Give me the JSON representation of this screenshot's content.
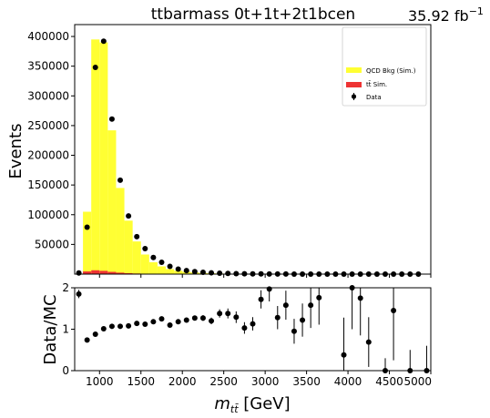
{
  "chart_data": {
    "type": "bar",
    "title": "ttbarmass  0t+1t+2t1bcen",
    "lumi_label": "35.92 fb",
    "lumi_exp": "−1",
    "ylabel_top": "Events",
    "ylabel_bottom": "Data/MC",
    "xlabel_base": "m",
    "xlabel_sub": "tt̄",
    "xlabel_unit": " [GeV]",
    "xlim": [
      700,
      5000
    ],
    "ylim_top": [
      0,
      420000
    ],
    "ylim_bottom": [
      0,
      2
    ],
    "x_ticks": [
      1000,
      1500,
      2000,
      2500,
      3000,
      3500,
      4000,
      4500,
      5000
    ],
    "y_ticks_top": [
      50000,
      100000,
      150000,
      200000,
      250000,
      300000,
      350000,
      400000
    ],
    "y_ticks_bottom": [
      0,
      1,
      2
    ],
    "colors": {
      "qcd": "#ffff33",
      "ttbar": "#ee3333",
      "data": "#000000"
    },
    "legend": {
      "placement": "top-right",
      "entries": [
        {
          "key": "qcd",
          "label": "QCD Bkg (Sim.)"
        },
        {
          "key": "ttbar",
          "label": "tt̄ Sim."
        },
        {
          "key": "data",
          "label": "Data"
        }
      ]
    },
    "bin_edges": [
      700,
      800,
      900,
      1000,
      1100,
      1200,
      1300,
      1400,
      1500,
      1600,
      1700,
      1800,
      1900,
      2000,
      2100,
      2200,
      2300,
      2400,
      2500,
      2600,
      2700,
      2800,
      2900,
      3000,
      3100,
      3200,
      3300,
      3400,
      3500,
      3600,
      3700,
      3800,
      3900,
      4000,
      4100,
      4200,
      4300,
      4400,
      4500,
      4600,
      4700,
      4800,
      4900,
      5000
    ],
    "series": [
      {
        "name": "QCD Bkg (Sim.)",
        "values": [
          0,
          105000,
          395000,
          390000,
          242000,
          145000,
          90000,
          55000,
          33000,
          20000,
          13000,
          8500,
          5800,
          4000,
          2800,
          2000,
          1400,
          1000,
          700,
          500,
          350,
          250,
          180,
          130,
          100,
          70,
          55,
          40,
          30,
          22,
          16,
          12,
          9,
          7,
          5,
          4,
          3,
          2,
          1.5,
          1,
          0.8,
          0.6,
          0.4
        ]
      },
      {
        "name": "tt̄ Sim.",
        "values": [
          0,
          4500,
          6500,
          5500,
          3800,
          2500,
          1600,
          1000,
          600,
          400,
          250,
          150,
          100,
          70,
          50,
          35,
          25,
          18,
          12,
          9,
          6,
          4,
          3,
          2,
          1.5,
          1,
          0.8,
          0.6,
          0.4,
          0.3,
          0.2,
          0.15,
          0.1,
          0.08,
          0.06,
          0.05,
          0.04,
          0.03,
          0.02,
          0.02,
          0.01,
          0.01,
          0.01
        ]
      },
      {
        "name": "Data",
        "x": [
          750,
          850,
          950,
          1050,
          1150,
          1250,
          1350,
          1450,
          1550,
          1650,
          1750,
          1850,
          1950,
          2050,
          2150,
          2250,
          2350,
          2450,
          2550,
          2650,
          2750,
          2850,
          2950,
          3050,
          3150,
          3250,
          3350,
          3450,
          3550,
          3650,
          3750,
          3850,
          3950,
          4050,
          4150,
          4250,
          4350,
          4450,
          4550,
          4650,
          4750,
          4850,
          4950
        ],
        "values": [
          2000,
          79000,
          348000,
          392000,
          261000,
          158000,
          98000,
          63000,
          43000,
          28000,
          20000,
          13000,
          8500,
          6000,
          4300,
          3100,
          2200,
          1600,
          1100,
          800,
          550,
          400,
          300,
          240,
          180,
          120,
          80,
          60,
          45,
          35,
          25,
          18,
          12,
          9,
          7,
          5,
          4,
          3,
          2,
          1,
          1,
          1,
          0
        ]
      },
      {
        "name": "Ratio",
        "x": [
          750,
          850,
          950,
          1050,
          1150,
          1250,
          1350,
          1450,
          1550,
          1650,
          1750,
          1850,
          1950,
          2050,
          2150,
          2250,
          2350,
          2450,
          2550,
          2650,
          2750,
          2850,
          2950,
          3050,
          3150,
          3250,
          3350,
          3450,
          3550,
          3650,
          3950,
          4050,
          4150,
          4250,
          4450,
          4550,
          4750,
          4950
        ],
        "values": [
          1.85,
          0.74,
          0.88,
          1.01,
          1.07,
          1.07,
          1.08,
          1.14,
          1.12,
          1.18,
          1.25,
          1.1,
          1.18,
          1.22,
          1.27,
          1.27,
          1.2,
          1.38,
          1.38,
          1.29,
          1.03,
          1.13,
          1.72,
          1.97,
          1.28,
          1.58,
          0.95,
          1.22,
          1.58,
          1.76,
          0.38,
          2.0,
          1.75,
          0.69,
          0.0,
          1.45,
          0.0,
          0.0
        ],
        "errors": [
          0.1,
          0.03,
          0.01,
          0.01,
          0.01,
          0.01,
          0.01,
          0.02,
          0.02,
          0.02,
          0.03,
          0.03,
          0.04,
          0.05,
          0.06,
          0.07,
          0.08,
          0.1,
          0.12,
          0.14,
          0.14,
          0.16,
          0.22,
          0.3,
          0.28,
          0.35,
          0.3,
          0.4,
          0.55,
          0.65,
          0.9,
          1.0,
          0.9,
          0.6,
          0.3,
          1.2,
          0.5,
          0.6
        ]
      }
    ]
  }
}
